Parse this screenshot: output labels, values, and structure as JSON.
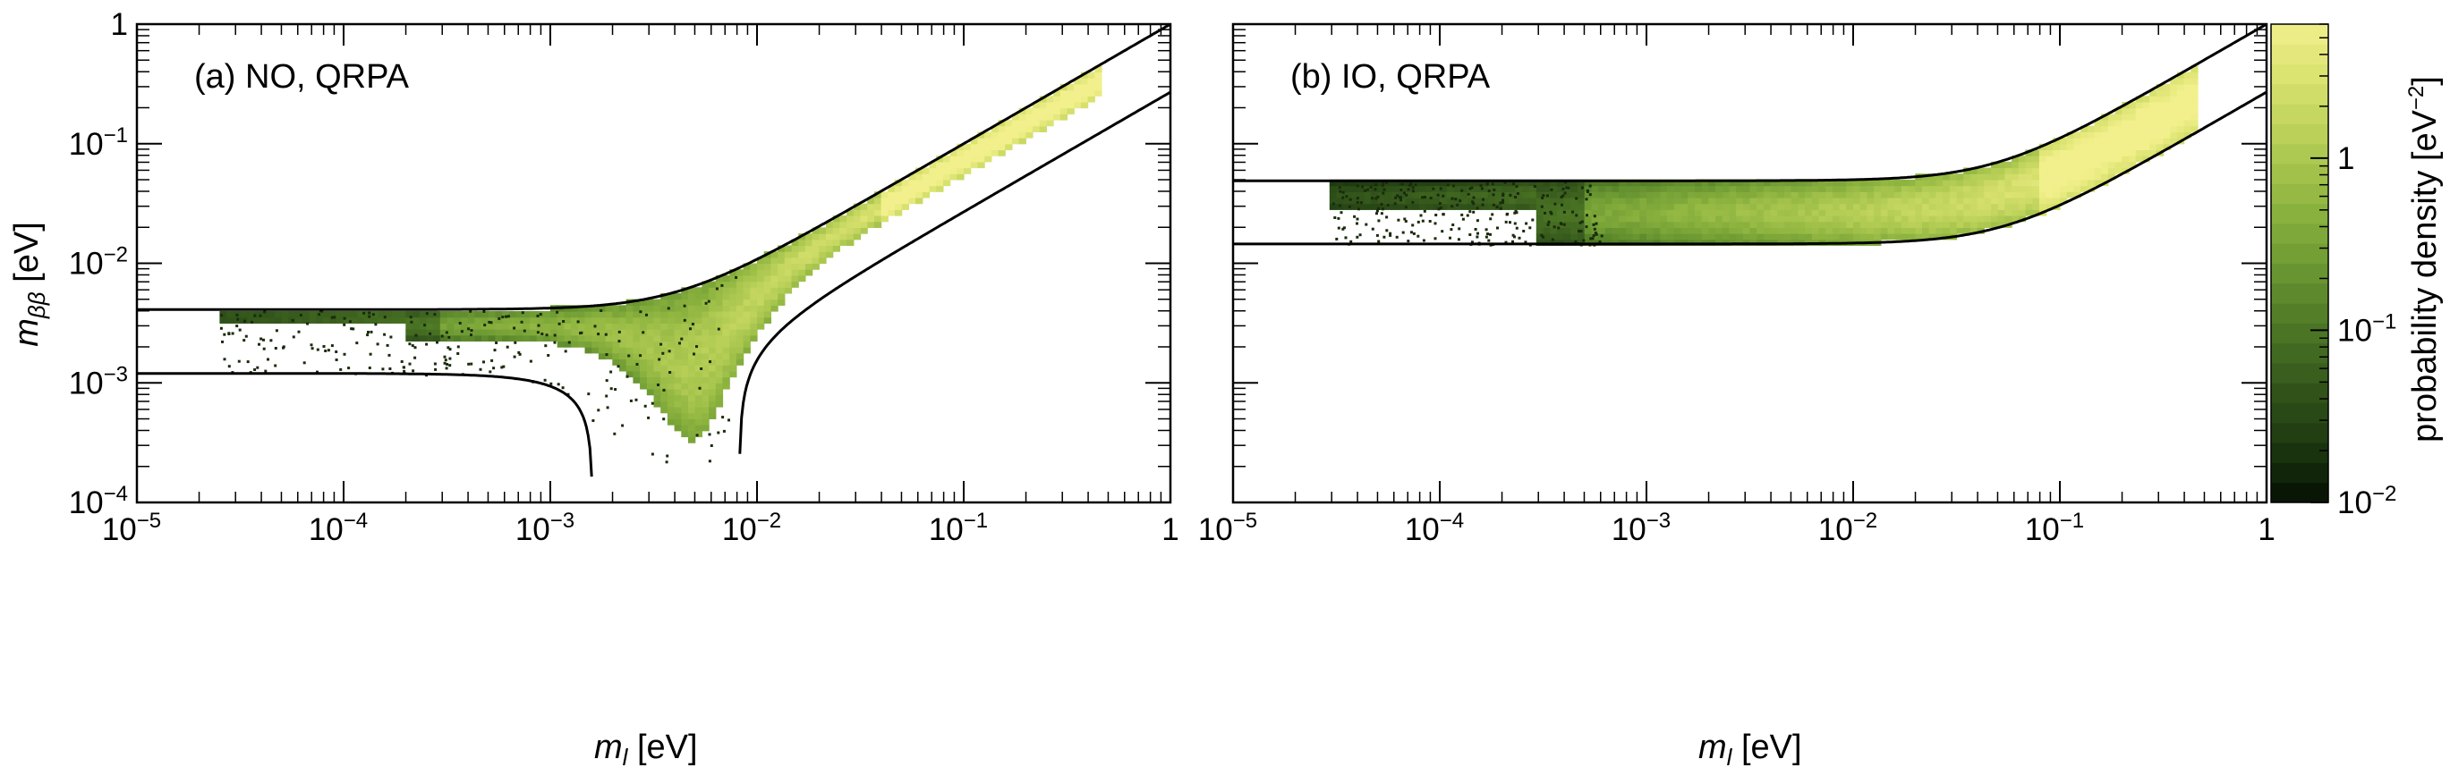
{
  "chart_data": [
    {
      "type": "heatmap",
      "panel_label": "(a) NO, QRPA",
      "x_axis": {
        "scale": "log",
        "range": [
          1e-05,
          1
        ],
        "label_main": "m",
        "label_sub": "l",
        "label_unit": " [eV]",
        "tick_values": [
          1e-05,
          0.0001,
          0.001,
          0.01,
          0.1,
          1
        ],
        "tick_labels": [
          {
            "base": "10",
            "exp": "−5"
          },
          {
            "base": "10",
            "exp": "−4"
          },
          {
            "base": "10",
            "exp": "−3"
          },
          {
            "base": "10",
            "exp": "−2"
          },
          {
            "base": "10",
            "exp": "−1"
          },
          {
            "base": "1",
            "exp": ""
          }
        ]
      },
      "y_axis": {
        "scale": "log",
        "range": [
          0.0001,
          1
        ],
        "label_main": "m",
        "label_sub": "ββ",
        "label_unit": " [eV]",
        "tick_values": [
          0.0001,
          0.001,
          0.01,
          0.1,
          1
        ],
        "tick_labels": [
          {
            "base": "10",
            "exp": "−4"
          },
          {
            "base": "10",
            "exp": "−3"
          },
          {
            "base": "10",
            "exp": "−2"
          },
          {
            "base": "10",
            "exp": "−1"
          },
          {
            "base": "1",
            "exp": ""
          }
        ]
      },
      "boundary_lines": {
        "upper_plateau": 0.0041,
        "lower_plateau_left": 0.0012,
        "lower_cusps_at_ml": [
          0.0016,
          0.0082
        ],
        "upper_at_ml_1": 1.0,
        "lower_at_ml_1": 0.27
      },
      "density_region": {
        "ml_range": [
          2.5e-05,
          0.45
        ],
        "peak_density_near_ml": 0.04,
        "peak_mbb_approx": 0.04
      }
    },
    {
      "type": "heatmap",
      "panel_label": "(b) IO, QRPA",
      "x_axis": {
        "scale": "log",
        "range": [
          1e-05,
          1
        ],
        "label_main": "m",
        "label_sub": "l",
        "label_unit": " [eV]",
        "tick_values": [
          1e-05,
          0.0001,
          0.001,
          0.01,
          0.1,
          1
        ],
        "tick_labels": [
          {
            "base": "10",
            "exp": "−5"
          },
          {
            "base": "10",
            "exp": "−4"
          },
          {
            "base": "10",
            "exp": "−3"
          },
          {
            "base": "10",
            "exp": "−2"
          },
          {
            "base": "10",
            "exp": "−1"
          },
          {
            "base": "1",
            "exp": ""
          }
        ]
      },
      "y_axis": {
        "scale": "log",
        "range": [
          0.0001,
          1
        ],
        "tick_values": [
          0.0001,
          0.001,
          0.01,
          0.1,
          1
        ]
      },
      "boundary_lines": {
        "upper_plateau": 0.049,
        "lower_plateau": 0.0145,
        "upper_at_ml_1": 1.0,
        "lower_at_ml_1": 0.27
      },
      "density_region": {
        "ml_range": [
          3e-05,
          0.45
        ],
        "peak_density_near_ml": 0.08
      }
    }
  ],
  "colorbar": {
    "label_text": "probability density [eV",
    "label_exp": "−2",
    "label_close": "]",
    "scale": "log",
    "range": [
      0.01,
      6
    ],
    "colormap": [
      "#050f04",
      "#1d3a10",
      "#35581c",
      "#4f7a26",
      "#6d9a33",
      "#8fb540",
      "#b4cd55",
      "#d6e06c",
      "#f2f08c"
    ],
    "tick_values": [
      0.01,
      0.1,
      1
    ],
    "tick_labels": [
      {
        "base": "10",
        "exp": "−2"
      },
      {
        "base": "10",
        "exp": "−1"
      },
      {
        "base": "1",
        "exp": ""
      }
    ]
  }
}
